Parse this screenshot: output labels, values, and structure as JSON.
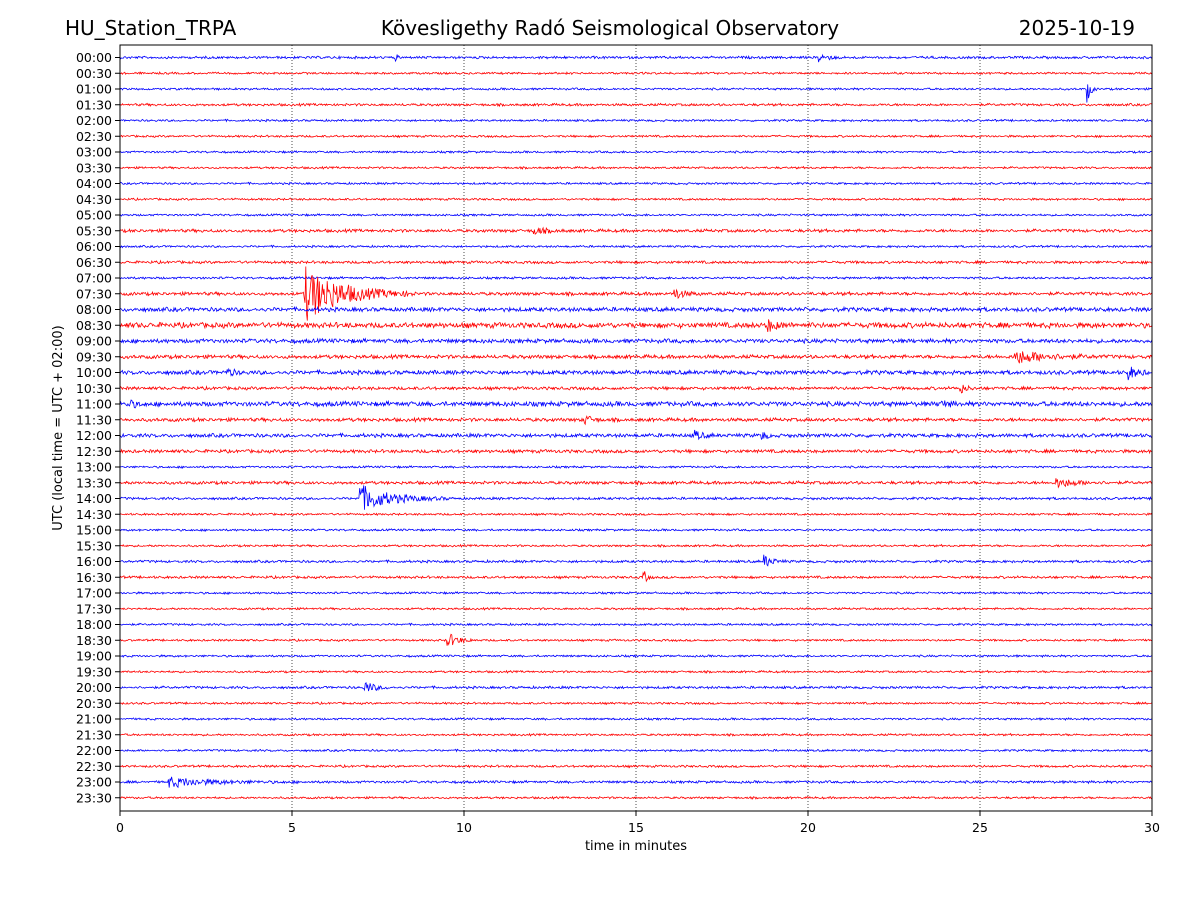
{
  "header": {
    "station": "HU_Station_TRPA",
    "observatory": "Kövesligethy Radó Seismological Observatory",
    "date": "2025-10-19"
  },
  "chart_data": {
    "type": "line",
    "title": "Kövesligethy Radó Seismological Observatory",
    "xlabel": "time in minutes",
    "ylabel": "UTC (local time = UTC + 02:00)",
    "xlim": [
      0,
      30
    ],
    "xticks": [
      "0",
      "5",
      "10",
      "15",
      "20",
      "25",
      "30"
    ],
    "grid": "vertical dotted lines at each x tick",
    "colors": {
      "even_rows": "#0000ff",
      "odd_rows": "#ff0000"
    },
    "rows": [
      "00:00",
      "00:30",
      "01:00",
      "01:30",
      "02:00",
      "02:30",
      "03:00",
      "03:30",
      "04:00",
      "04:30",
      "05:00",
      "05:30",
      "06:00",
      "06:30",
      "07:00",
      "07:30",
      "08:00",
      "08:30",
      "09:00",
      "09:30",
      "10:00",
      "10:30",
      "11:00",
      "11:30",
      "12:00",
      "12:30",
      "13:00",
      "13:30",
      "14:00",
      "14:30",
      "15:00",
      "15:30",
      "16:00",
      "16:30",
      "17:00",
      "17:30",
      "18:00",
      "18:30",
      "19:00",
      "19:30",
      "20:00",
      "20:30",
      "21:00",
      "21:30",
      "22:00",
      "22:30",
      "23:00",
      "23:30"
    ],
    "noise_level": [
      1.2,
      1,
      1,
      1.2,
      1,
      1,
      1,
      1,
      1,
      1,
      1,
      1.5,
      1,
      1.3,
      1.1,
      1.6,
      2,
      2.6,
      2,
      1.8,
      2,
      1.5,
      2.3,
      1.7,
      1.8,
      1.6,
      1,
      1.5,
      1.2,
      1,
      1,
      1,
      1.2,
      1.2,
      1,
      1,
      1,
      1,
      1,
      1,
      1.2,
      1,
      1,
      1,
      1,
      1.1,
      1.2,
      1
    ],
    "events": [
      {
        "row": "00:00",
        "minute": 20.3,
        "amplitude": 5,
        "duration": 0.7
      },
      {
        "row": "00:00",
        "minute": 8.0,
        "amplitude": 4,
        "duration": 0.2
      },
      {
        "row": "01:00",
        "minute": 28.1,
        "amplitude": 15,
        "duration": 0.3
      },
      {
        "row": "05:30",
        "minute": 12.0,
        "amplitude": 4,
        "duration": 1.0
      },
      {
        "row": "07:30",
        "minute": 5.35,
        "amplitude": 28,
        "duration": 3.2
      },
      {
        "row": "07:30",
        "minute": 16.1,
        "amplitude": 6,
        "duration": 0.8
      },
      {
        "row": "08:30",
        "minute": 18.8,
        "amplitude": 6,
        "duration": 0.8
      },
      {
        "row": "09:30",
        "minute": 26.0,
        "amplitude": 7,
        "duration": 2.6
      },
      {
        "row": "10:00",
        "minute": 3.1,
        "amplitude": 5,
        "duration": 0.5
      },
      {
        "row": "10:00",
        "minute": 29.3,
        "amplitude": 7,
        "duration": 0.7
      },
      {
        "row": "10:30",
        "minute": 24.4,
        "amplitude": 6,
        "duration": 0.5
      },
      {
        "row": "11:00",
        "minute": 0.2,
        "amplitude": 5,
        "duration": 0.6
      },
      {
        "row": "11:00",
        "minute": 23.8,
        "amplitude": 5,
        "duration": 0.6
      },
      {
        "row": "11:30",
        "minute": 13.5,
        "amplitude": 5,
        "duration": 0.6
      },
      {
        "row": "12:00",
        "minute": 16.7,
        "amplitude": 5,
        "duration": 0.6
      },
      {
        "row": "12:00",
        "minute": 18.6,
        "amplitude": 6,
        "duration": 0.4
      },
      {
        "row": "13:30",
        "minute": 27.2,
        "amplitude": 5,
        "duration": 1.6
      },
      {
        "row": "14:00",
        "minute": 6.95,
        "amplitude": 14,
        "duration": 2.6
      },
      {
        "row": "16:00",
        "minute": 18.7,
        "amplitude": 7,
        "duration": 0.7
      },
      {
        "row": "16:30",
        "minute": 15.2,
        "amplitude": 9,
        "duration": 0.3
      },
      {
        "row": "18:30",
        "minute": 9.5,
        "amplitude": 8,
        "duration": 0.9
      },
      {
        "row": "20:00",
        "minute": 7.1,
        "amplitude": 7,
        "duration": 0.8
      },
      {
        "row": "23:00",
        "minute": 1.4,
        "amplitude": 5,
        "duration": 3.7
      }
    ]
  }
}
